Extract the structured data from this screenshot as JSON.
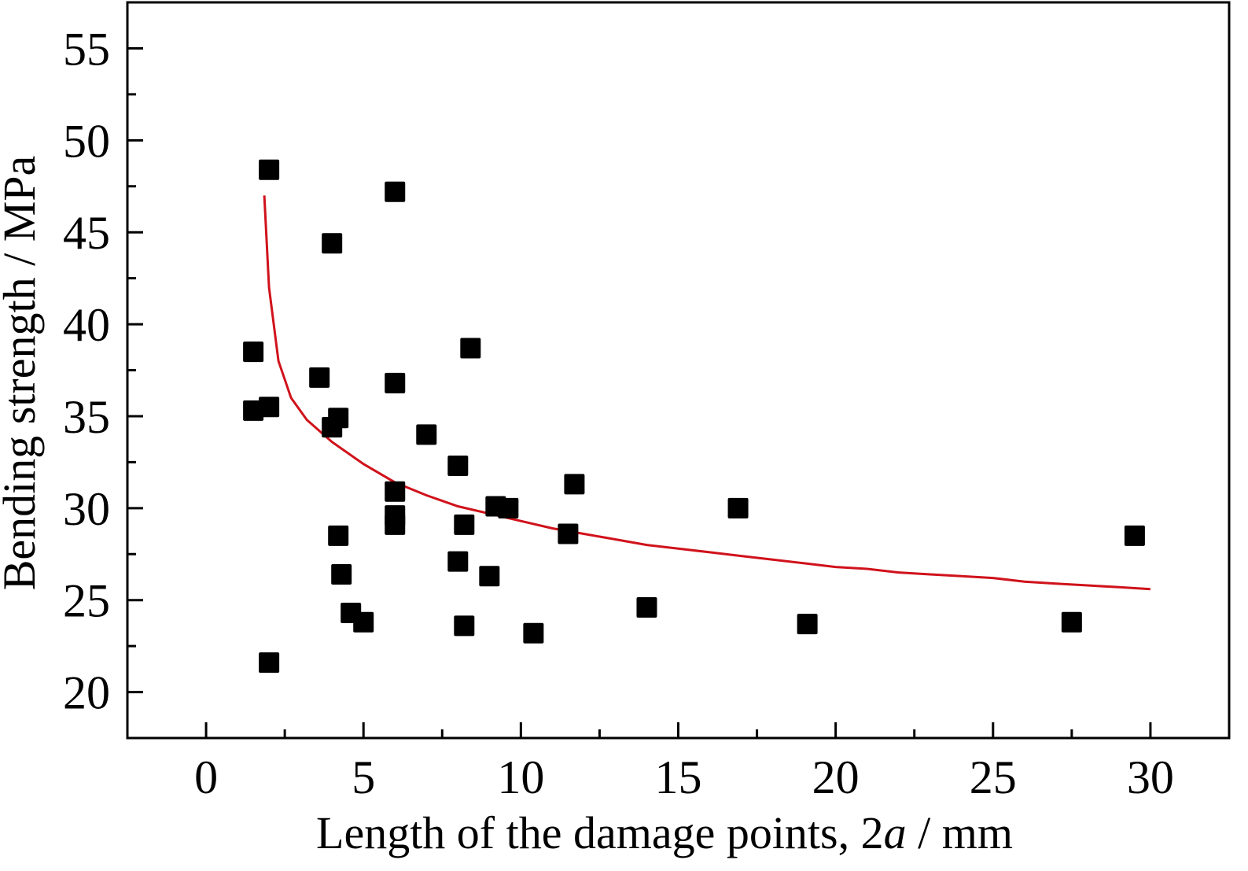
{
  "chart_data": {
    "type": "scatter",
    "xlabel": "Length of the damage points, 2a / mm",
    "xlabel_parts": {
      "before": "Length of the damage points, 2",
      "italic": "a",
      "after": " / mm"
    },
    "ylabel": "Bending strength / MPa",
    "xlim": [
      -2.5,
      32.5
    ],
    "ylim": [
      17.5,
      57.5
    ],
    "xticks": [
      0,
      5,
      10,
      15,
      20,
      25,
      30
    ],
    "yticks": [
      20,
      25,
      30,
      35,
      40,
      45,
      50,
      55
    ],
    "grid": false,
    "legend": "none",
    "colors": {
      "points": "#000000",
      "fit_curve": "#d0121b",
      "axes": "#000000"
    },
    "series": [
      {
        "type": "scatter",
        "marker": "square",
        "points": [
          [
            1.5,
            38.5
          ],
          [
            1.5,
            35.3
          ],
          [
            2.0,
            35.5
          ],
          [
            2.0,
            48.4
          ],
          [
            2.0,
            21.6
          ],
          [
            3.6,
            37.1
          ],
          [
            4.0,
            34.4
          ],
          [
            4.0,
            44.4
          ],
          [
            4.2,
            34.9
          ],
          [
            4.2,
            28.5
          ],
          [
            4.3,
            26.4
          ],
          [
            4.6,
            24.3
          ],
          [
            5.0,
            23.8
          ],
          [
            6.0,
            47.2
          ],
          [
            6.0,
            36.8
          ],
          [
            6.0,
            30.9
          ],
          [
            6.0,
            29.6
          ],
          [
            6.0,
            29.1
          ],
          [
            7.0,
            34.0
          ],
          [
            8.0,
            27.1
          ],
          [
            8.0,
            32.3
          ],
          [
            8.2,
            29.1
          ],
          [
            8.2,
            23.6
          ],
          [
            8.4,
            38.7
          ],
          [
            9.0,
            26.3
          ],
          [
            9.2,
            30.1
          ],
          [
            9.6,
            30.0
          ],
          [
            10.4,
            23.2
          ],
          [
            11.5,
            28.6
          ],
          [
            11.7,
            31.3
          ],
          [
            14.0,
            24.6
          ],
          [
            16.9,
            30.0
          ],
          [
            19.1,
            23.7
          ],
          [
            27.5,
            23.8
          ],
          [
            29.5,
            28.5
          ]
        ]
      },
      {
        "type": "line",
        "points": [
          [
            1.85,
            47.0
          ],
          [
            2.0,
            42.0
          ],
          [
            2.3,
            38.0
          ],
          [
            2.7,
            36.0
          ],
          [
            3.2,
            34.8
          ],
          [
            4.0,
            33.6
          ],
          [
            5.0,
            32.4
          ],
          [
            6.0,
            31.4
          ],
          [
            7.0,
            30.7
          ],
          [
            8.0,
            30.1
          ],
          [
            9.0,
            29.7
          ],
          [
            10.0,
            29.3
          ],
          [
            11.0,
            28.9
          ],
          [
            12.0,
            28.6
          ],
          [
            13.0,
            28.3
          ],
          [
            14.0,
            28.0
          ],
          [
            15.0,
            27.8
          ],
          [
            16.0,
            27.6
          ],
          [
            17.0,
            27.4
          ],
          [
            18.0,
            27.2
          ],
          [
            19.0,
            27.0
          ],
          [
            20.0,
            26.8
          ],
          [
            21.0,
            26.7
          ],
          [
            22.0,
            26.5
          ],
          [
            23.0,
            26.4
          ],
          [
            24.0,
            26.3
          ],
          [
            25.0,
            26.2
          ],
          [
            26.0,
            26.0
          ],
          [
            27.0,
            25.9
          ],
          [
            28.0,
            25.8
          ],
          [
            29.0,
            25.7
          ],
          [
            30.0,
            25.6
          ]
        ]
      }
    ]
  }
}
